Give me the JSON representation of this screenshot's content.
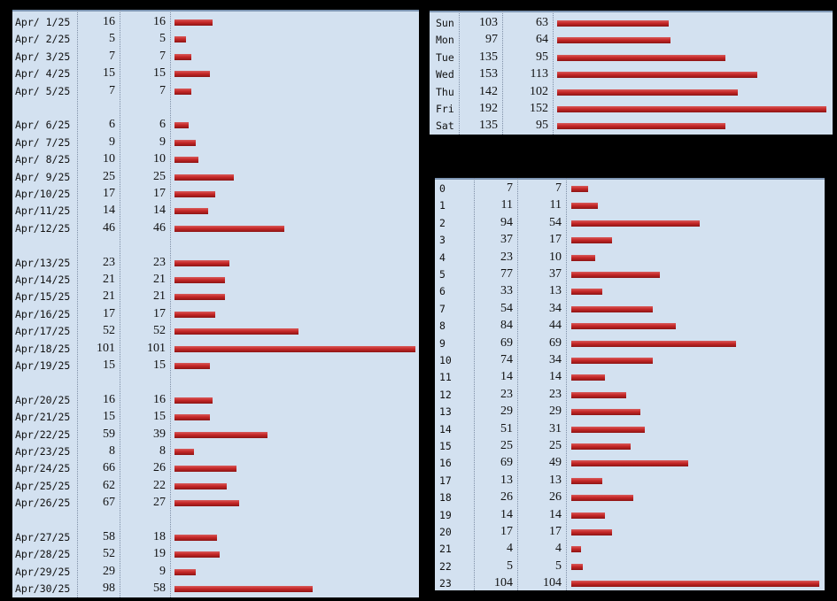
{
  "colors": {
    "panel_bg": "#d3e1f0",
    "bar": "#c62828",
    "background": "#000000"
  },
  "chart_data": [
    {
      "type": "table",
      "name": "daily",
      "bar_max": 101,
      "groups": [
        [
          [
            "Apr/ 1/25",
            16,
            16
          ],
          [
            "Apr/ 2/25",
            5,
            5
          ],
          [
            "Apr/ 3/25",
            7,
            7
          ],
          [
            "Apr/ 4/25",
            15,
            15
          ],
          [
            "Apr/ 5/25",
            7,
            7
          ]
        ],
        [
          [
            "Apr/ 6/25",
            6,
            6
          ],
          [
            "Apr/ 7/25",
            9,
            9
          ],
          [
            "Apr/ 8/25",
            10,
            10
          ],
          [
            "Apr/ 9/25",
            25,
            25
          ],
          [
            "Apr/10/25",
            17,
            17
          ],
          [
            "Apr/11/25",
            14,
            14
          ],
          [
            "Apr/12/25",
            46,
            46
          ]
        ],
        [
          [
            "Apr/13/25",
            23,
            23
          ],
          [
            "Apr/14/25",
            21,
            21
          ],
          [
            "Apr/15/25",
            21,
            21
          ],
          [
            "Apr/16/25",
            17,
            17
          ],
          [
            "Apr/17/25",
            52,
            52
          ],
          [
            "Apr/18/25",
            101,
            101
          ],
          [
            "Apr/19/25",
            15,
            15
          ]
        ],
        [
          [
            "Apr/20/25",
            16,
            16
          ],
          [
            "Apr/21/25",
            15,
            15
          ],
          [
            "Apr/22/25",
            59,
            39
          ],
          [
            "Apr/23/25",
            8,
            8
          ],
          [
            "Apr/24/25",
            66,
            26
          ],
          [
            "Apr/25/25",
            62,
            22
          ],
          [
            "Apr/26/25",
            67,
            27
          ]
        ],
        [
          [
            "Apr/27/25",
            58,
            18
          ],
          [
            "Apr/28/25",
            52,
            19
          ],
          [
            "Apr/29/25",
            29,
            9
          ],
          [
            "Apr/30/25",
            98,
            58
          ]
        ]
      ]
    },
    {
      "type": "table",
      "name": "weekday",
      "bar_max": 152,
      "rows": [
        [
          "Sun",
          103,
          63
        ],
        [
          "Mon",
          97,
          64
        ],
        [
          "Tue",
          135,
          95
        ],
        [
          "Wed",
          153,
          113
        ],
        [
          "Thu",
          142,
          102
        ],
        [
          "Fri",
          192,
          152
        ],
        [
          "Sat",
          135,
          95
        ]
      ]
    },
    {
      "type": "table",
      "name": "hourly",
      "bar_max": 104,
      "rows": [
        [
          "0",
          7,
          7
        ],
        [
          "1",
          11,
          11
        ],
        [
          "2",
          94,
          54
        ],
        [
          "3",
          37,
          17
        ],
        [
          "4",
          23,
          10
        ],
        [
          "5",
          77,
          37
        ],
        [
          "6",
          33,
          13
        ],
        [
          "7",
          54,
          34
        ],
        [
          "8",
          84,
          44
        ],
        [
          "9",
          69,
          69
        ],
        [
          "10",
          74,
          34
        ],
        [
          "11",
          14,
          14
        ],
        [
          "12",
          23,
          23
        ],
        [
          "13",
          29,
          29
        ],
        [
          "14",
          51,
          31
        ],
        [
          "15",
          25,
          25
        ],
        [
          "16",
          69,
          49
        ],
        [
          "17",
          13,
          13
        ],
        [
          "18",
          26,
          26
        ],
        [
          "19",
          14,
          14
        ],
        [
          "20",
          17,
          17
        ],
        [
          "21",
          4,
          4
        ],
        [
          "22",
          5,
          5
        ],
        [
          "23",
          104,
          104
        ]
      ]
    }
  ]
}
